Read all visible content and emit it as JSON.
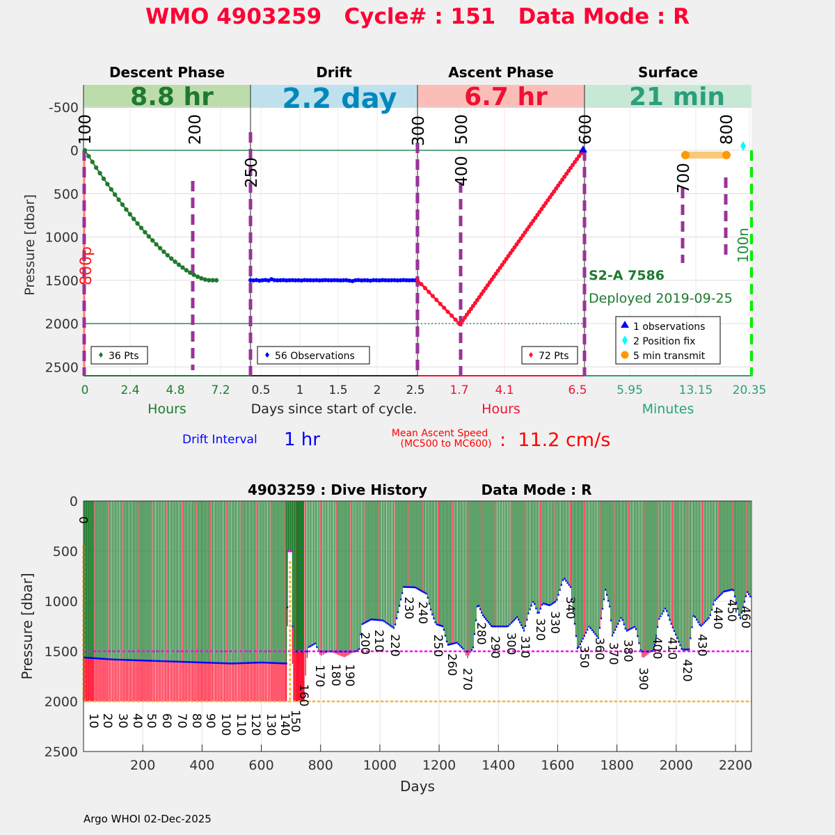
{
  "title": "WMO 4903259   Cycle# : 151   Data Mode : R",
  "footer": "Argo WHOI 02-Dec-2025",
  "colors": {
    "title": "#ff0033",
    "descent": "#1e7a2e",
    "drift": "#0088bb",
    "ascent": "#ee1133",
    "surface": "#2aa07a",
    "marker": "#993399"
  },
  "chart_data": [
    {
      "type": "line",
      "title": "",
      "ylabel": "Pressure [dbar]",
      "ylim": [
        2600,
        -750
      ],
      "yticks": [
        "-500",
        "0",
        "500",
        "1000",
        "1500",
        "2000",
        "2500"
      ],
      "yvalues": [
        -500,
        0,
        500,
        1000,
        1500,
        2000,
        2500
      ],
      "phases": [
        {
          "name": "Descent Phase",
          "duration": "8.8 hr",
          "xlabel": "Hours",
          "xticks": [
            "0",
            "2.4",
            "4.8",
            "7.2"
          ],
          "legend": "36 Pts"
        },
        {
          "name": "Drift",
          "duration": "2.2 day",
          "xlabel": "Days since start of cycle.",
          "xticks": [
            "0.5",
            "1",
            "1.5",
            "2",
            "2.5"
          ],
          "legend": "56 Observations"
        },
        {
          "name": "Ascent Phase",
          "duration": "6.7 hr",
          "xlabel": "Hours",
          "xticks": [
            "1.7",
            "4.1",
            "6.5"
          ],
          "legend": "72 Pts"
        },
        {
          "name": "Surface",
          "duration": "21 min",
          "xlabel": "Minutes",
          "xticks": [
            "5.95",
            "13.15",
            "20.35"
          ],
          "legend": ""
        }
      ],
      "surface_legend": [
        "1 observations",
        "2 Position fix",
        "5 min transmit"
      ],
      "markers": [
        "100",
        "200",
        "250",
        "300",
        "400",
        "500",
        "600",
        "700",
        "800"
      ],
      "left_label": "800p",
      "right_label": "100n",
      "float_type": "S2-A 7586",
      "deployed": "Deployed 2019-09-25",
      "reference_lines": [
        0,
        2000
      ],
      "descent": {
        "hours": [
          0,
          0.2,
          0.4,
          0.6,
          0.8,
          1.0,
          1.2,
          1.4,
          1.6,
          1.8,
          2.0,
          2.2,
          2.4,
          2.6,
          2.8,
          3.0,
          3.2,
          3.4,
          3.6,
          3.8,
          4.0,
          4.2,
          4.4,
          4.6,
          4.8,
          5.0,
          5.2,
          5.4,
          5.6,
          5.8,
          6.0,
          6.2,
          6.4,
          6.6,
          6.8,
          7.0
        ],
        "pressure": [
          0,
          68,
          134,
          200,
          264,
          328,
          390,
          451,
          511,
          570,
          627,
          684,
          738,
          792,
          845,
          896,
          945,
          994,
          1040,
          1086,
          1129,
          1171,
          1211,
          1250,
          1286,
          1321,
          1353,
          1384,
          1412,
          1437,
          1459,
          1478,
          1492,
          1500,
          1500,
          1500
        ]
      },
      "drift": {
        "pressure": [
          1500,
          1502,
          1498,
          1505,
          1500,
          1497,
          1503,
          1488,
          1499,
          1501,
          1500,
          1498,
          1502,
          1500,
          1499,
          1501,
          1500,
          1503,
          1498,
          1500,
          1500,
          1501,
          1499,
          1502,
          1500,
          1498,
          1500,
          1501,
          1499,
          1500,
          1502,
          1500,
          1499,
          1505,
          1510,
          1500,
          1498,
          1502,
          1500,
          1501,
          1505,
          1499,
          1500,
          1502,
          1498,
          1500,
          1501,
          1500,
          1499,
          1502,
          1500,
          1498,
          1500,
          1501,
          1500,
          1500
        ]
      },
      "ascent": {
        "pressure": [
          1500,
          1545,
          1590,
          1636,
          1682,
          1727,
          1773,
          1818,
          1864,
          1909,
          1955,
          2000,
          2000,
          1966,
          1932,
          1898,
          1864,
          1831,
          1797,
          1763,
          1729,
          1695,
          1661,
          1627,
          1593,
          1559,
          1525,
          1492,
          1458,
          1424,
          1390,
          1356,
          1322,
          1288,
          1254,
          1220,
          1186,
          1153,
          1119,
          1085,
          1051,
          1017,
          983,
          949,
          915,
          881,
          847,
          814,
          780,
          746,
          712,
          678,
          644,
          610,
          576,
          542,
          508,
          475,
          441,
          407,
          373,
          339,
          305,
          271,
          237,
          203,
          169,
          136,
          102,
          68,
          34,
          0
        ]
      },
      "surface": {
        "transmit_pressure": 55,
        "position_fix_pressure": -50,
        "observation_pressure": 0
      },
      "drift_interval_label": "Drift Interval",
      "drift_interval_value": "1 hr",
      "ascent_speed_label_1": "Mean Ascent Speed",
      "ascent_speed_label_2": "(MC500 to MC600)",
      "ascent_speed_value": ":  11.2 cm/s"
    },
    {
      "type": "bar",
      "title": "4903259 : Dive History",
      "title2": "Data Mode : R",
      "xlabel": "Days",
      "ylabel": "Pressure [dbar]",
      "xlim": [
        0,
        2254
      ],
      "ylim": [
        2500,
        0
      ],
      "xticks": [
        200,
        400,
        600,
        800,
        1000,
        1200,
        1400,
        1600,
        1800,
        2000,
        2200
      ],
      "yticks": [
        0,
        500,
        1000,
        1500,
        2000,
        2500
      ],
      "park_reference": 1500,
      "profile_reference": 2000,
      "profile_depth": [
        [
          0,
          2000
        ],
        [
          686,
          2000
        ],
        [
          690,
          500
        ],
        [
          704,
          500
        ],
        [
          706,
          2000
        ],
        [
          744,
          2000
        ],
        [
          751,
          1667
        ],
        [
          759,
          1458
        ],
        [
          782,
          1420
        ],
        [
          800,
          1550
        ],
        [
          830,
          1500
        ],
        [
          880,
          1560
        ],
        [
          930,
          1480
        ],
        [
          939,
          1230
        ],
        [
          970,
          1180
        ],
        [
          1010,
          1190
        ],
        [
          1049,
          1270
        ],
        [
          1065,
          1060
        ],
        [
          1080,
          856
        ],
        [
          1119,
          860
        ],
        [
          1158,
          926
        ],
        [
          1174,
          1111
        ],
        [
          1189,
          1227
        ],
        [
          1213,
          1250
        ],
        [
          1228,
          1435
        ],
        [
          1260,
          1412
        ],
        [
          1283,
          1481
        ],
        [
          1295,
          1574
        ],
        [
          1315,
          1458
        ],
        [
          1330,
          1019
        ],
        [
          1346,
          1134
        ],
        [
          1377,
          1250
        ],
        [
          1432,
          1250
        ],
        [
          1463,
          1157
        ],
        [
          1487,
          1296
        ],
        [
          1502,
          1111
        ],
        [
          1518,
          995
        ],
        [
          1534,
          1134
        ],
        [
          1549,
          1019
        ],
        [
          1573,
          1040
        ],
        [
          1596,
          995
        ],
        [
          1620,
          764
        ],
        [
          1643,
          856
        ],
        [
          1667,
          1481
        ],
        [
          1706,
          1250
        ],
        [
          1737,
          1366
        ],
        [
          1761,
          880
        ],
        [
          1776,
          1065
        ],
        [
          1784,
          1343
        ],
        [
          1815,
          1157
        ],
        [
          1831,
          1296
        ],
        [
          1862,
          1250
        ],
        [
          1886,
          1574
        ],
        [
          1925,
          1481
        ],
        [
          1941,
          1181
        ],
        [
          1964,
          1065
        ],
        [
          1980,
          1204
        ],
        [
          2019,
          1481
        ],
        [
          2043,
          1481
        ],
        [
          2059,
          1134
        ],
        [
          2082,
          1250
        ],
        [
          2113,
          1157
        ],
        [
          2129,
          995
        ],
        [
          2160,
          903
        ],
        [
          2192,
          880
        ],
        [
          2215,
          1181
        ],
        [
          2239,
          903
        ],
        [
          2254,
          972
        ]
      ],
      "park_pressure": [
        [
          0,
          1560
        ],
        [
          100,
          1580
        ],
        [
          200,
          1590
        ],
        [
          300,
          1600
        ],
        [
          400,
          1610
        ],
        [
          500,
          1620
        ],
        [
          600,
          1610
        ],
        [
          686,
          1620
        ],
        [
          690,
          500
        ],
        [
          704,
          500
        ],
        [
          706,
          1500
        ],
        [
          2254,
          1500
        ]
      ],
      "cycle_labels": [
        {
          "label": "0",
          "day": 0
        },
        {
          "label": "10",
          "day": 35
        },
        {
          "label": "20",
          "day": 82
        },
        {
          "label": "30",
          "day": 134
        },
        {
          "label": "40",
          "day": 183
        },
        {
          "label": "50",
          "day": 230
        },
        {
          "label": "60",
          "day": 282
        },
        {
          "label": "70",
          "day": 333
        },
        {
          "label": "80",
          "day": 383
        },
        {
          "label": "90",
          "day": 430
        },
        {
          "label": "100",
          "day": 481
        },
        {
          "label": "110",
          "day": 533
        },
        {
          "label": "120",
          "day": 582
        },
        {
          "label": "130",
          "day": 634
        },
        {
          "label": "140",
          "day": 681
        },
        {
          "label": "150",
          "day": 716
        },
        {
          "label": "160",
          "day": 744
        },
        {
          "label": "170",
          "day": 798
        },
        {
          "label": "180",
          "day": 852
        },
        {
          "label": "190",
          "day": 899
        },
        {
          "label": "200",
          "day": 951
        },
        {
          "label": "210",
          "day": 998
        },
        {
          "label": "220",
          "day": 1052
        },
        {
          "label": "230",
          "day": 1099
        },
        {
          "label": "240",
          "day": 1146
        },
        {
          "label": "250",
          "day": 1197
        },
        {
          "label": "260",
          "day": 1244
        },
        {
          "label": "270",
          "day": 1296
        },
        {
          "label": "280",
          "day": 1343
        },
        {
          "label": "290",
          "day": 1390
        },
        {
          "label": "300",
          "day": 1444
        },
        {
          "label": "310",
          "day": 1491
        },
        {
          "label": "320",
          "day": 1542
        },
        {
          "label": "330",
          "day": 1592
        },
        {
          "label": "340",
          "day": 1643
        },
        {
          "label": "350",
          "day": 1690
        },
        {
          "label": "360",
          "day": 1742
        },
        {
          "label": "370",
          "day": 1789
        },
        {
          "label": "380",
          "day": 1838
        },
        {
          "label": "390",
          "day": 1890
        },
        {
          "label": "400",
          "day": 1937
        },
        {
          "label": "410",
          "day": 1988
        },
        {
          "label": "420",
          "day": 2038
        },
        {
          "label": "430",
          "day": 2089
        },
        {
          "label": "440",
          "day": 2141
        },
        {
          "label": "450",
          "day": 2188
        },
        {
          "label": "460",
          "day": 2235
        }
      ],
      "colors": {
        "park_leg": "#1a7a2a",
        "profile_leg": "#ff1030",
        "park_obs": "#0000ff",
        "park_ref": "#ff00ff",
        "profile_ref": "#ffb030"
      }
    }
  ]
}
